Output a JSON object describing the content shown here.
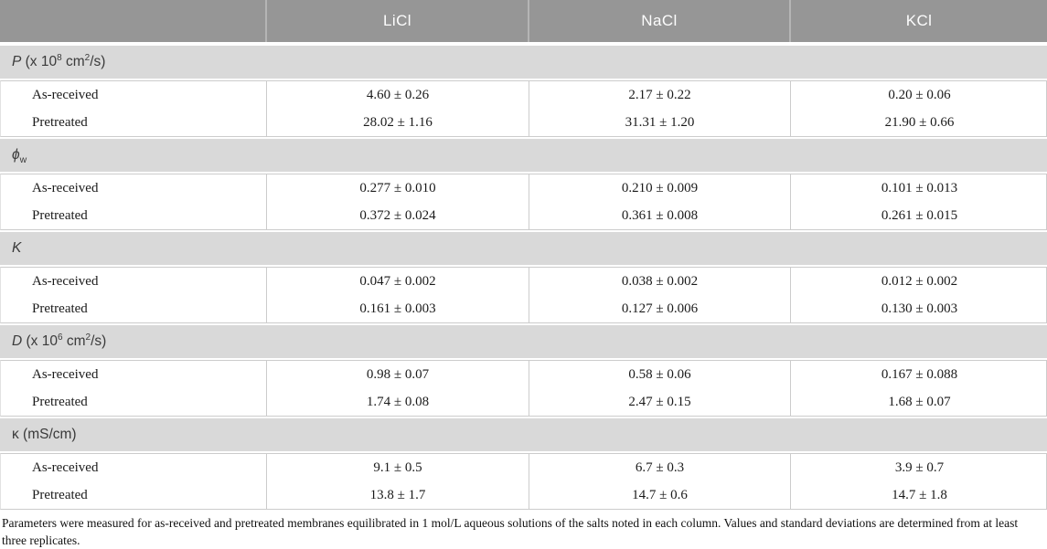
{
  "table": {
    "columns": [
      "",
      "LiCl",
      "NaCl",
      "KCl"
    ],
    "sections": [
      {
        "symbol": "P",
        "sub": "",
        "unit_pre": " (x 10",
        "sup1": "8",
        "unit_mid": " cm",
        "sup2": "2",
        "unit_post": "/s)",
        "rows": [
          {
            "label": "As-received",
            "values": [
              "4.60 ± 0.26",
              "2.17 ± 0.22",
              "0.20 ± 0.06"
            ]
          },
          {
            "label": "Pretreated",
            "values": [
              "28.02 ± 1.16",
              "31.31 ± 1.20",
              "21.90 ± 0.66"
            ]
          }
        ]
      },
      {
        "symbol": "ϕ",
        "sub": "w",
        "unit_pre": "",
        "sup1": "",
        "unit_mid": "",
        "sup2": "",
        "unit_post": "",
        "rows": [
          {
            "label": "As-received",
            "values": [
              "0.277 ± 0.010",
              "0.210 ± 0.009",
              "0.101 ± 0.013"
            ]
          },
          {
            "label": "Pretreated",
            "values": [
              "0.372 ± 0.024",
              "0.361 ± 0.008",
              "0.261 ± 0.015"
            ]
          }
        ]
      },
      {
        "symbol": "K",
        "sub": "",
        "unit_pre": "",
        "sup1": "",
        "unit_mid": "",
        "sup2": "",
        "unit_post": "",
        "rows": [
          {
            "label": "As-received",
            "values": [
              "0.047 ± 0.002",
              "0.038 ± 0.002",
              "0.012 ± 0.002"
            ]
          },
          {
            "label": "Pretreated",
            "values": [
              "0.161 ± 0.003",
              "0.127 ± 0.006",
              "0.130 ± 0.003"
            ]
          }
        ]
      },
      {
        "symbol": "D",
        "sub": "",
        "unit_pre": " (x 10",
        "sup1": "6",
        "unit_mid": " cm",
        "sup2": "2",
        "unit_post": "/s)",
        "rows": [
          {
            "label": "As-received",
            "values": [
              "0.98 ± 0.07",
              "0.58 ± 0.06",
              "0.167 ± 0.088"
            ]
          },
          {
            "label": "Pretreated",
            "values": [
              "1.74 ± 0.08",
              "2.47 ± 0.15",
              "1.68 ± 0.07"
            ]
          }
        ]
      },
      {
        "symbol": "κ",
        "sub": "",
        "unit_pre": " (mS/cm)",
        "sup1": "",
        "unit_mid": "",
        "sup2": "",
        "unit_post": "",
        "rows": [
          {
            "label": "As-received",
            "values": [
              "9.1 ± 0.5",
              "6.7 ± 0.3",
              "3.9 ± 0.7"
            ]
          },
          {
            "label": "Pretreated",
            "values": [
              "13.8 ± 1.7",
              "14.7 ± 0.6",
              "14.7 ± 1.8"
            ]
          }
        ]
      }
    ],
    "footnote": "Parameters were measured for as-received and pretreated membranes equilibrated in 1 mol/L aqueous solutions of the salts noted in each column. Values and standard deviations are determined from at least three replicates."
  }
}
